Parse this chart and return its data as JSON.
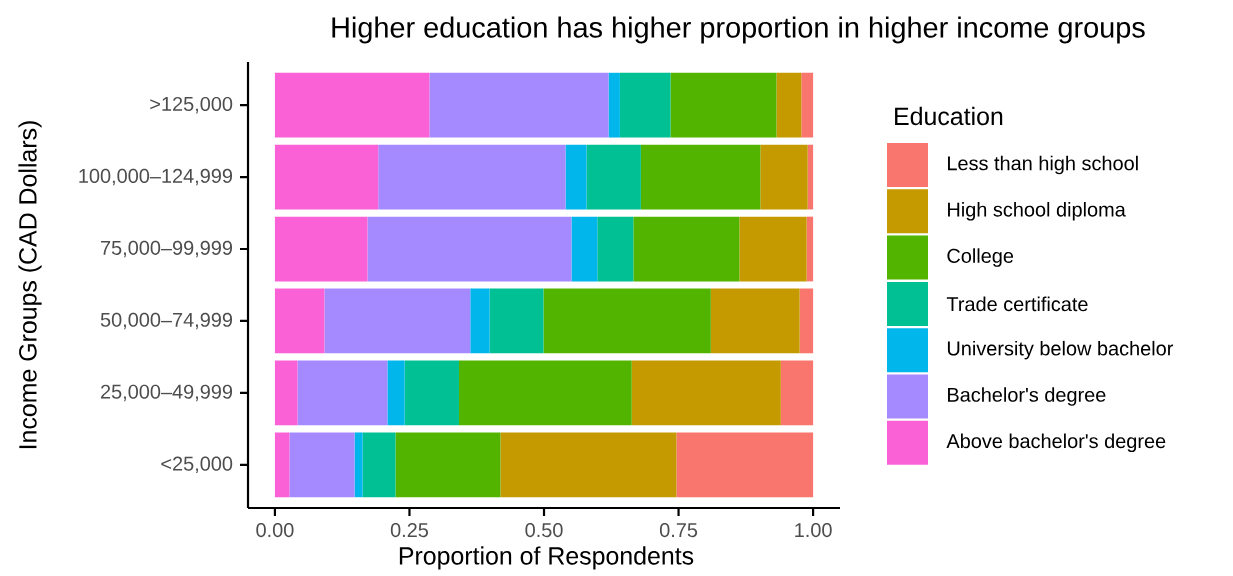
{
  "chart_data": {
    "type": "bar",
    "orientation": "horizontal",
    "stacked": true,
    "title": "Higher education has higher proportion in higher income groups",
    "xlabel": "Proportion of Respondents",
    "ylabel": "Income Groups (CAD Dollars)",
    "legend_title": "Education",
    "categories": [
      ">125,000",
      "100,000–124,999",
      "75,000–99,999",
      "50,000–74,999",
      "25,000–49,999",
      "<25,000"
    ],
    "xlim": [
      -0.05,
      1.05
    ],
    "xticks": [
      {
        "value": 0,
        "label": "0.00"
      },
      {
        "value": 0.25,
        "label": "0.25"
      },
      {
        "value": 0.5,
        "label": "0.50"
      },
      {
        "value": 0.75,
        "label": "0.75"
      },
      {
        "value": 1,
        "label": "1.00"
      }
    ],
    "legend": "right",
    "series": [
      {
        "name": "Above bachelor's degree",
        "color": "#fb61d7",
        "values": [
          0.287,
          0.192,
          0.172,
          0.092,
          0.042,
          0.027
        ]
      },
      {
        "name": "Bachelor's degree",
        "color": "#a58aff",
        "values": [
          0.333,
          0.348,
          0.379,
          0.271,
          0.167,
          0.121
        ]
      },
      {
        "name": "University below bachelor",
        "color": "#00b6eb",
        "values": [
          0.021,
          0.039,
          0.048,
          0.036,
          0.032,
          0.015
        ]
      },
      {
        "name": "Trade certificate",
        "color": "#00c094",
        "values": [
          0.094,
          0.101,
          0.067,
          0.1,
          0.101,
          0.061
        ]
      },
      {
        "name": "College",
        "color": "#53b400",
        "values": [
          0.197,
          0.222,
          0.197,
          0.311,
          0.321,
          0.195
        ]
      },
      {
        "name": "High school diploma",
        "color": "#c49a00",
        "values": [
          0.046,
          0.088,
          0.125,
          0.165,
          0.277,
          0.327
        ]
      },
      {
        "name": "Less than high school",
        "color": "#f8766d",
        "values": [
          0.022,
          0.01,
          0.012,
          0.025,
          0.06,
          0.254
        ]
      }
    ]
  }
}
